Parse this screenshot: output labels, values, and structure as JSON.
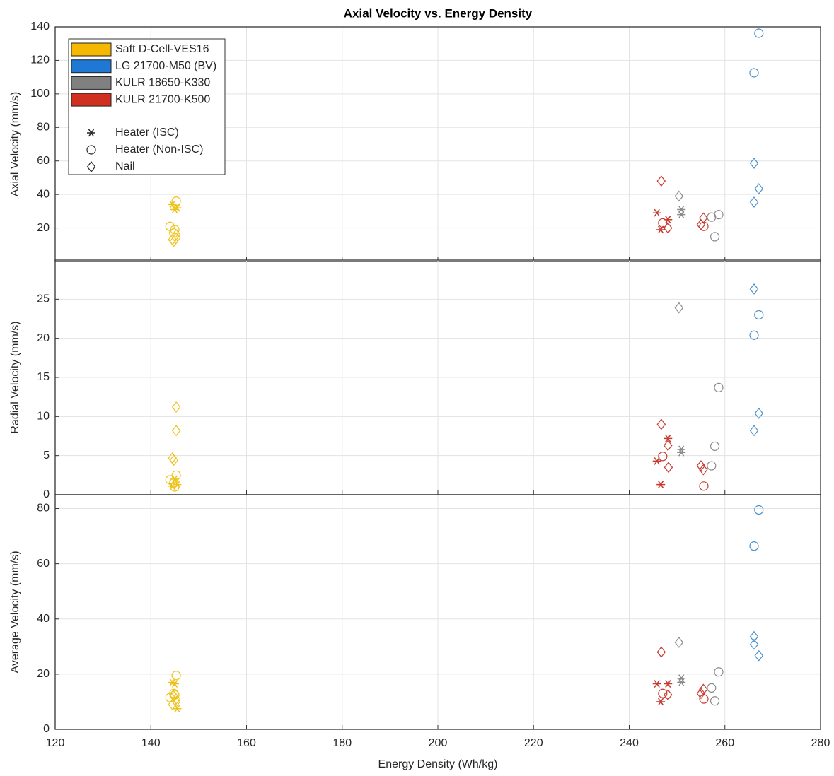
{
  "chart_data": [
    {
      "type": "scatter",
      "title": "Axial Velocity vs. Energy Density",
      "ylabel": "Axial Velocity (mm/s)",
      "xlim": [
        120,
        280
      ],
      "xticks": [
        120,
        140,
        160,
        180,
        200,
        220,
        240,
        260,
        280
      ],
      "xticklabels": false,
      "ylim": [
        0,
        140
      ],
      "yticks": [
        20,
        40,
        60,
        80,
        100,
        120,
        140
      ],
      "grid": true,
      "legend": {
        "location": "upper left",
        "patches": [
          {
            "name": "Saft D-Cell-VES16",
            "color": "#f5b800"
          },
          {
            "name": "LG 21700-M50 (BV)",
            "color": "#1f78d4"
          },
          {
            "name": "KULR 18650-K330",
            "color": "#808080"
          },
          {
            "name": "KULR 21700-K500",
            "color": "#d03020"
          }
        ],
        "markers": [
          {
            "name": "Heater (ISC)",
            "marker": "star"
          },
          {
            "name": "Heater (Non-ISC)",
            "marker": "circle"
          },
          {
            "name": "Nail",
            "marker": "diamond"
          }
        ]
      },
      "series": [
        {
          "color": "#eec21a",
          "marker": "star",
          "x": [
            144.5,
            145.0,
            145.5
          ],
          "values": [
            34,
            31,
            32
          ]
        },
        {
          "color": "#eec21a",
          "marker": "circle",
          "x": [
            144.0,
            145.3,
            145.0,
            144.8
          ],
          "values": [
            21,
            36,
            19,
            17
          ]
        },
        {
          "color": "#eec21a",
          "marker": "diamond",
          "x": [
            144.5,
            145.3,
            145.3,
            144.8
          ],
          "values": [
            13,
            16,
            14,
            12
          ]
        },
        {
          "color": "#c83a2e",
          "marker": "star",
          "x": [
            245.8,
            246.6,
            248.1
          ],
          "values": [
            29,
            19,
            25
          ]
        },
        {
          "color": "#c83a2e",
          "marker": "circle",
          "x": [
            247.0,
            255.6
          ],
          "values": [
            23,
            21
          ]
        },
        {
          "color": "#c83a2e",
          "marker": "diamond",
          "x": [
            246.7,
            248.1,
            255.5,
            255.0
          ],
          "values": [
            48,
            20,
            26,
            22
          ]
        },
        {
          "color": "#8a8a8a",
          "marker": "star",
          "x": [
            250.9,
            250.9
          ],
          "values": [
            31,
            28
          ]
        },
        {
          "color": "#8a8a8a",
          "marker": "circle",
          "x": [
            257.2,
            257.9,
            258.7
          ],
          "values": [
            26.5,
            14.8,
            28
          ]
        },
        {
          "color": "#8a8a8a",
          "marker": "diamond",
          "x": [
            250.4
          ],
          "values": [
            39
          ]
        },
        {
          "color": "#4a92cc",
          "marker": "circle",
          "x": [
            267.1,
            266.1
          ],
          "values": [
            136.2,
            112.6
          ]
        },
        {
          "color": "#4a92cc",
          "marker": "diamond",
          "x": [
            266.1,
            267.1,
            266.1
          ],
          "values": [
            58.6,
            43.4,
            35.4
          ]
        }
      ]
    },
    {
      "type": "scatter",
      "ylabel": "Radial Velocity (mm/s)",
      "xlim": [
        120,
        280
      ],
      "xticks": [
        120,
        140,
        160,
        180,
        200,
        220,
        240,
        260,
        280
      ],
      "xticklabels": false,
      "ylim": [
        0,
        30
      ],
      "yticks": [
        0,
        5,
        10,
        15,
        20,
        25
      ],
      "grid": true,
      "series": [
        {
          "color": "#eec21a",
          "marker": "star",
          "x": [
            144.5,
            145.0,
            145.5
          ],
          "values": [
            1.1,
            2.0,
            1.3
          ]
        },
        {
          "color": "#eec21a",
          "marker": "circle",
          "x": [
            144.0,
            145.3,
            145.0,
            144.8
          ],
          "values": [
            1.9,
            2.5,
            1.0,
            1.5
          ]
        },
        {
          "color": "#eec21a",
          "marker": "diamond",
          "x": [
            144.5,
            145.3,
            145.3,
            144.8
          ],
          "values": [
            4.7,
            11.2,
            8.2,
            4.4
          ]
        },
        {
          "color": "#c83a2e",
          "marker": "star",
          "x": [
            245.8,
            246.6,
            248.1
          ],
          "values": [
            4.3,
            1.3,
            7.2
          ]
        },
        {
          "color": "#c83a2e",
          "marker": "circle",
          "x": [
            247.0,
            255.6
          ],
          "values": [
            4.9,
            1.1
          ]
        },
        {
          "color": "#c83a2e",
          "marker": "diamond",
          "x": [
            246.7,
            248.1,
            255.5,
            255.0,
            248.2
          ],
          "values": [
            9.0,
            6.3,
            3.2,
            3.7,
            3.5
          ]
        },
        {
          "color": "#8a8a8a",
          "marker": "star",
          "x": [
            250.9,
            250.9
          ],
          "values": [
            5.8,
            5.4
          ]
        },
        {
          "color": "#8a8a8a",
          "marker": "circle",
          "x": [
            257.2,
            257.9,
            258.7
          ],
          "values": [
            3.7,
            6.2,
            13.7
          ]
        },
        {
          "color": "#8a8a8a",
          "marker": "diamond",
          "x": [
            250.4
          ],
          "values": [
            23.9
          ]
        },
        {
          "color": "#4a92cc",
          "marker": "circle",
          "x": [
            267.1,
            266.1
          ],
          "values": [
            23.0,
            20.4
          ]
        },
        {
          "color": "#4a92cc",
          "marker": "diamond",
          "x": [
            266.1,
            267.1,
            266.1
          ],
          "values": [
            26.3,
            10.4,
            8.2
          ]
        }
      ]
    },
    {
      "type": "scatter",
      "ylabel": "Average Velocity (mm/s)",
      "xlabel": "Energy Density (Wh/kg)",
      "xlim": [
        120,
        280
      ],
      "xticks": [
        120,
        140,
        160,
        180,
        200,
        220,
        240,
        260,
        280
      ],
      "xticklabels": true,
      "ylim": [
        0,
        85
      ],
      "yticks": [
        0,
        20,
        40,
        60,
        80
      ],
      "grid": true,
      "series": [
        {
          "color": "#eec21a",
          "marker": "star",
          "x": [
            144.5,
            145.0,
            145.5
          ],
          "values": [
            17,
            16.5,
            7.5
          ]
        },
        {
          "color": "#eec21a",
          "marker": "circle",
          "x": [
            144.0,
            145.3,
            145.0,
            144.8
          ],
          "values": [
            11.5,
            19.5,
            12.5,
            13
          ]
        },
        {
          "color": "#eec21a",
          "marker": "diamond",
          "x": [
            144.5,
            145.3,
            145.3,
            144.8
          ],
          "values": [
            9,
            10,
            11,
            12
          ]
        },
        {
          "color": "#c83a2e",
          "marker": "star",
          "x": [
            245.8,
            246.6,
            248.1
          ],
          "values": [
            16.5,
            10,
            16.5
          ]
        },
        {
          "color": "#c83a2e",
          "marker": "circle",
          "x": [
            247.0,
            255.6
          ],
          "values": [
            13,
            11
          ]
        },
        {
          "color": "#c83a2e",
          "marker": "diamond",
          "x": [
            246.7,
            248.1,
            255.5,
            255.0
          ],
          "values": [
            28,
            12.5,
            14.5,
            13
          ]
        },
        {
          "color": "#8a8a8a",
          "marker": "star",
          "x": [
            250.9,
            250.9
          ],
          "values": [
            18.5,
            17
          ]
        },
        {
          "color": "#8a8a8a",
          "marker": "circle",
          "x": [
            257.2,
            257.9,
            258.7
          ],
          "values": [
            15,
            10.3,
            20.8
          ]
        },
        {
          "color": "#8a8a8a",
          "marker": "diamond",
          "x": [
            250.4
          ],
          "values": [
            31.5
          ]
        },
        {
          "color": "#4a92cc",
          "marker": "circle",
          "x": [
            267.1,
            266.1
          ],
          "values": [
            79.5,
            66.4
          ]
        },
        {
          "color": "#4a92cc",
          "marker": "diamond",
          "x": [
            266.1,
            267.1,
            266.1
          ],
          "values": [
            33.6,
            26.7,
            30.8
          ]
        }
      ]
    }
  ]
}
